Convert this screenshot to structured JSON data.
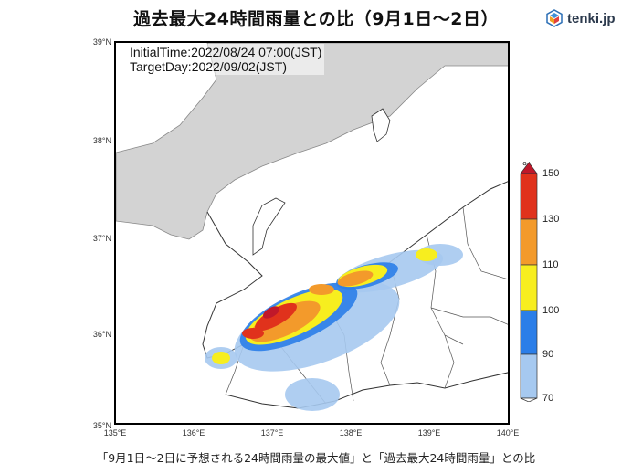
{
  "title": "過去最大24時間雨量との比（9月1日～2日）",
  "brand": {
    "name": "tenki.jp",
    "icon": "tenki-logo-icon"
  },
  "info": {
    "initial_time": "InitialTime:2022/08/24 07:00(JST)",
    "target_day": "TargetDay:2022/09/02(JST)"
  },
  "axes": {
    "latitudes": [
      "39°N",
      "38°N",
      "37°N",
      "36°N",
      "35°N"
    ],
    "longitudes": [
      "135°E",
      "136°E",
      "137°E",
      "138°E",
      "139°E",
      "140°E"
    ]
  },
  "legend": {
    "unit": "%",
    "levels": [
      "150",
      "130",
      "110",
      "100",
      "90",
      "70"
    ],
    "colors": {
      "130-150": "#e0321c",
      "110-130": "#f39a2b",
      "100-110": "#f7ee1f",
      "90-100": "#2b7ee8",
      "70-90": "#a6c9f0",
      "above-150": "#c0182a"
    }
  },
  "footer": "「9月1日～2日に予想される24時間雨量の最大値」と「過去最大24時間雨量」との比",
  "map_colors": {
    "sea_masked": "#d3d3d3",
    "land": "#ffffff",
    "border": "#333333"
  }
}
